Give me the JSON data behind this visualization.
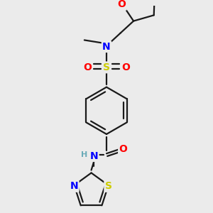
{
  "background_color": "#ebebeb",
  "bond_color": "#1a1a1a",
  "colors": {
    "N": "#0000ff",
    "O": "#ff0000",
    "S_sulfonyl": "#cccc00",
    "S_thiazole": "#cccc00",
    "N_thiazole": "#0000ff",
    "H": "#6aabb8",
    "C": "#1a1a1a"
  },
  "figsize": [
    3.0,
    3.0
  ],
  "dpi": 100
}
